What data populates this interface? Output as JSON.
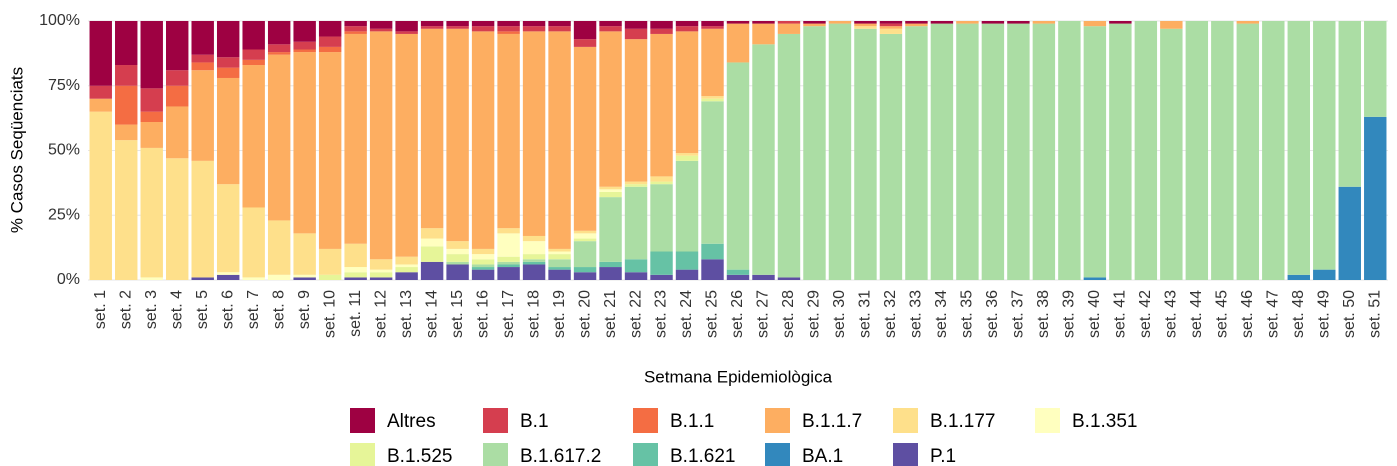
{
  "chart_data": {
    "type": "stacked_bar",
    "x_label": "Setmana Epidemiològica",
    "y_label": "% Casos Seqüenciats",
    "ylim": [
      0,
      100
    ],
    "yticks": [
      {
        "value": 0,
        "label": "0%"
      },
      {
        "value": 25,
        "label": "25%"
      },
      {
        "value": 50,
        "label": "50%"
      },
      {
        "value": 75,
        "label": "75%"
      },
      {
        "value": 100,
        "label": "100%"
      }
    ],
    "grid": true,
    "legend": "bottom",
    "categories": [
      "set. 1",
      "set. 2",
      "set. 3",
      "set. 4",
      "set. 5",
      "set. 6",
      "set. 7",
      "set. 8",
      "set. 9",
      "set. 10",
      "set. 11",
      "set. 12",
      "set. 13",
      "set. 14",
      "set. 15",
      "set. 16",
      "set. 17",
      "set. 18",
      "set. 19",
      "set. 20",
      "set. 21",
      "set. 22",
      "set. 23",
      "set. 24",
      "set. 25",
      "set. 26",
      "set. 27",
      "set. 28",
      "set. 29",
      "set. 30",
      "set. 31",
      "set. 32",
      "set. 33",
      "set. 34",
      "set. 35",
      "set. 36",
      "set. 37",
      "set. 38",
      "set. 39",
      "set. 40",
      "set. 41",
      "set. 42",
      "set. 43",
      "set. 44",
      "set. 45",
      "set. 46",
      "set. 47",
      "set. 48",
      "set. 49",
      "set. 50",
      "set. 51"
    ],
    "series": [
      {
        "name": "Altres",
        "color": "#9e0142",
        "values": [
          25,
          17,
          26,
          19,
          13,
          14,
          11,
          9,
          8,
          6,
          2,
          3,
          4,
          2,
          2,
          2,
          2,
          2,
          2,
          7,
          2,
          3,
          3,
          2,
          2,
          1,
          1,
          0,
          1,
          0,
          1,
          1,
          1,
          1,
          0,
          1,
          1,
          0,
          0,
          0,
          1,
          0,
          0,
          0,
          0,
          0,
          0,
          0,
          0,
          0,
          0
        ]
      },
      {
        "name": "B.1",
        "color": "#d53e4f",
        "values": [
          5,
          8,
          9,
          6,
          3,
          4,
          4,
          3,
          3,
          4,
          2,
          1,
          1,
          1,
          1,
          2,
          2,
          2,
          2,
          3,
          2,
          4,
          2,
          2,
          1,
          0,
          0,
          1,
          0,
          0,
          0,
          1,
          0,
          0,
          0,
          0,
          0,
          0,
          0,
          0,
          0,
          0,
          0,
          0,
          0,
          0,
          0,
          0,
          0,
          0,
          0
        ]
      },
      {
        "name": "B.1.1",
        "color": "#f46d43",
        "values": [
          0,
          15,
          4,
          8,
          3,
          4,
          2,
          1,
          1,
          2,
          1,
          0,
          0,
          0,
          0,
          0,
          1,
          0,
          0,
          0,
          0,
          0,
          0,
          0,
          0,
          0,
          0,
          0,
          0,
          0,
          0,
          0,
          0,
          0,
          0,
          0,
          0,
          0,
          0,
          0,
          0,
          0,
          0,
          0,
          0,
          0,
          0,
          0,
          0,
          0,
          0
        ]
      },
      {
        "name": "B.1.1.7",
        "color": "#fdae61",
        "values": [
          5,
          6,
          10,
          20,
          35,
          41,
          55,
          64,
          70,
          76,
          81,
          88,
          86,
          77,
          82,
          84,
          75,
          79,
          84,
          71,
          60,
          55,
          55,
          47,
          26,
          15,
          8,
          4,
          1,
          1,
          1,
          1,
          1,
          0,
          1,
          0,
          0,
          1,
          0,
          2,
          0,
          0,
          3,
          0,
          0,
          1,
          0,
          0,
          0,
          0,
          0
        ]
      },
      {
        "name": "B.1.177",
        "color": "#fee08b",
        "values": [
          65,
          54,
          50,
          47,
          45,
          34,
          27,
          21,
          16,
          10,
          9,
          4,
          3,
          4,
          3,
          2,
          2,
          2,
          1,
          1,
          1,
          1,
          2,
          1,
          1,
          0,
          0,
          0,
          0,
          0,
          1,
          2,
          0,
          0,
          0,
          0,
          0,
          0,
          0,
          0,
          0,
          0,
          0,
          0,
          0,
          0,
          0,
          0,
          0,
          0,
          0
        ]
      },
      {
        "name": "B.1.351",
        "color": "#ffffbf",
        "values": [
          0,
          0,
          1,
          0,
          0,
          1,
          1,
          2,
          1,
          0,
          2,
          1,
          1,
          3,
          2,
          2,
          9,
          5,
          1,
          2,
          1,
          0,
          0,
          0,
          0,
          0,
          0,
          0,
          0,
          0,
          0,
          0,
          0,
          0,
          0,
          0,
          0,
          0,
          0,
          0,
          0,
          0,
          0,
          0,
          0,
          0,
          0,
          0,
          0,
          0,
          0
        ]
      },
      {
        "name": "B.1.525",
        "color": "#e6f598",
        "values": [
          0,
          0,
          0,
          0,
          0,
          0,
          0,
          0,
          0,
          2,
          2,
          2,
          2,
          6,
          3,
          2,
          2,
          2,
          2,
          1,
          2,
          1,
          1,
          2,
          1,
          0,
          0,
          0,
          0,
          0,
          0,
          0,
          0,
          0,
          0,
          0,
          0,
          0,
          0,
          0,
          0,
          0,
          0,
          0,
          0,
          0,
          0,
          0,
          0,
          0,
          0
        ]
      },
      {
        "name": "B.1.617.2",
        "color": "#abdda4",
        "values": [
          0,
          0,
          0,
          0,
          0,
          0,
          0,
          0,
          0,
          0,
          0,
          0,
          0,
          0,
          1,
          1,
          1,
          1,
          3,
          10,
          25,
          28,
          26,
          35,
          55,
          80,
          89,
          94,
          98,
          99,
          97,
          95,
          98,
          99,
          99,
          99,
          99,
          99,
          100,
          97,
          99,
          100,
          97,
          100,
          100,
          99,
          100,
          98,
          96,
          64,
          37
        ]
      },
      {
        "name": "B.1.621",
        "color": "#66c2a5",
        "values": [
          0,
          0,
          0,
          0,
          0,
          0,
          0,
          0,
          0,
          0,
          0,
          0,
          0,
          0,
          0,
          1,
          1,
          1,
          1,
          2,
          2,
          5,
          9,
          7,
          6,
          2,
          0,
          0,
          0,
          0,
          0,
          0,
          0,
          0,
          0,
          0,
          0,
          0,
          0,
          0,
          0,
          0,
          0,
          0,
          0,
          0,
          0,
          0,
          0,
          0,
          0
        ]
      },
      {
        "name": "BA.1",
        "color": "#3288bd",
        "values": [
          0,
          0,
          0,
          0,
          0,
          0,
          0,
          0,
          0,
          0,
          0,
          0,
          0,
          0,
          0,
          0,
          0,
          0,
          0,
          0,
          0,
          0,
          0,
          0,
          0,
          0,
          0,
          0,
          0,
          0,
          0,
          0,
          0,
          0,
          0,
          0,
          0,
          0,
          0,
          1,
          0,
          0,
          0,
          0,
          0,
          0,
          0,
          2,
          4,
          36,
          63
        ]
      },
      {
        "name": "P.1",
        "color": "#5e4fa2",
        "values": [
          0,
          0,
          0,
          0,
          1,
          2,
          0,
          0,
          1,
          0,
          1,
          1,
          3,
          7,
          6,
          4,
          5,
          6,
          4,
          3,
          5,
          3,
          2,
          4,
          8,
          2,
          2,
          1,
          0,
          0,
          0,
          0,
          0,
          0,
          0,
          0,
          0,
          0,
          0,
          0,
          0,
          0,
          0,
          0,
          0,
          0,
          0,
          0,
          0,
          0,
          0
        ]
      }
    ]
  }
}
